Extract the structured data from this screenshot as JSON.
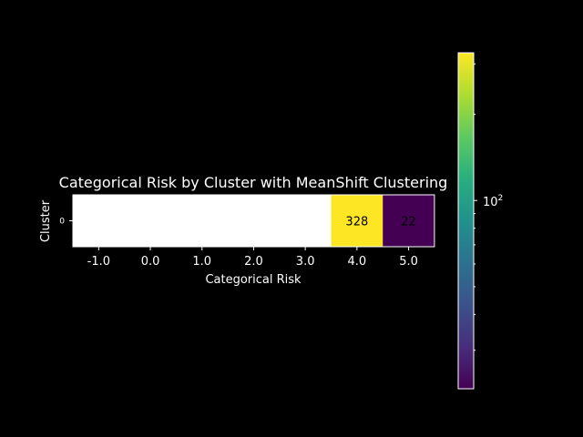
{
  "chart_data": {
    "type": "heatmap",
    "title": "Categorical Risk by Cluster with MeanShift Clustering",
    "xlabel": "Categorical Risk",
    "ylabel": "Cluster",
    "x_categories": [
      "-1.0",
      "0.0",
      "1.0",
      "2.0",
      "3.0",
      "4.0",
      "5.0"
    ],
    "y_categories": [
      "0"
    ],
    "cells": [
      {
        "x": "4.0",
        "y": "0",
        "value": 328,
        "label": "328",
        "color": "#fde725"
      },
      {
        "x": "5.0",
        "y": "0",
        "value": 22,
        "label": "22",
        "color": "#440154"
      }
    ],
    "empty_color": "#ffffff",
    "colorbar": {
      "scale": "log",
      "colormap": "viridis",
      "range": [
        22,
        328
      ],
      "major_tick_label": "10",
      "major_tick_exponent": "2",
      "major_tick_value": 100
    }
  }
}
